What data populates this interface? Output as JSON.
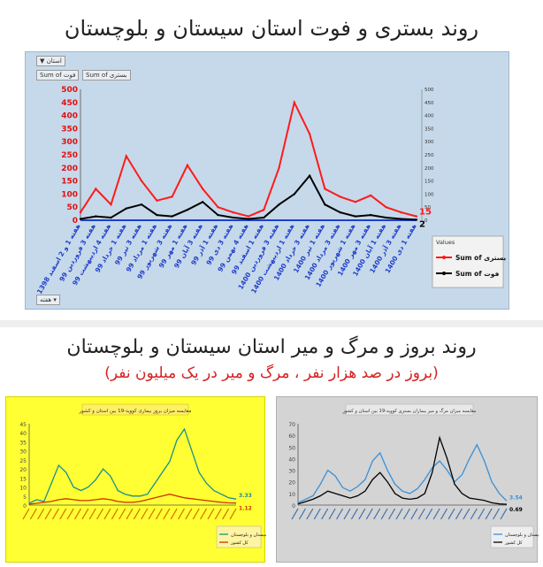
{
  "title1": "روند بستری و فوت استان سیستان و بلوچستان",
  "title2": "روند بروز و مرگ و میر استان سیستان و بلوچستان",
  "subtitle2": "(بروز در صد هزار نفر ، مرگ و میر در یک میلیون نفر)",
  "toolbar": {
    "filter_label": "استان",
    "week_label": "هفته"
  },
  "colors": {
    "hosp": "#ff1a1a",
    "death": "#000000",
    "blue_bg": "#c6d9ea",
    "incidence": "#1a8f8f",
    "inc_country": "#cc3300",
    "mort_province": "#3a8fd6",
    "mort_country": "#000000"
  },
  "chart_data": [
    {
      "type": "line",
      "x": [
        "هفته 1 و 2 اسفند 1398",
        "هفته 3 فروردین 99",
        "هفته 4 اردیبهشت 99",
        "هفته 1 خرداد 99",
        "هفته 3 تیر 99",
        "هفته 1 مرداد 99",
        "هفته 3 شهریور 99",
        "هفته 1 مهر 99",
        "هفته 3 آبان 99",
        "هفته 1 آذر 99",
        "هفته 3 دی 99",
        "هفته 4 بهمن 99",
        "هفته 1 اسفند 99",
        "هفته 3 فروردین 1400",
        "هفته 1 اردیبهشت 1400",
        "هفته 3 خرداد 1400",
        "هفته 1 تیر 1400",
        "هفته 3 مرداد 1400",
        "هفته 1 شهریور 1400",
        "هفته 3 مهر 1400",
        "هفته 1 آبان 1400",
        "هفته 3 آذر 1400",
        "هفته 1 دی 1400"
      ],
      "legend_title": "Values",
      "legend_position": "right",
      "series": [
        {
          "name": "Sum of بستری",
          "values": [
            30,
            120,
            60,
            245,
            150,
            75,
            90,
            210,
            120,
            50,
            30,
            15,
            40,
            200,
            450,
            330,
            120,
            90,
            70,
            95,
            50,
            30,
            15
          ]
        },
        {
          "name": "Sum of فوت",
          "values": [
            5,
            15,
            10,
            45,
            60,
            20,
            15,
            40,
            70,
            20,
            10,
            5,
            10,
            60,
            100,
            170,
            60,
            30,
            15,
            20,
            10,
            5,
            2
          ]
        }
      ],
      "yticks_left": [
        0,
        50,
        100,
        150,
        200,
        250,
        300,
        350,
        400,
        450,
        500
      ],
      "yticks_right": [
        0,
        50,
        100,
        150,
        200,
        250,
        300,
        350,
        400,
        450,
        500
      ],
      "ylim": [
        0,
        500
      ],
      "end_labels": [
        "15",
        "2"
      ],
      "header_chips": [
        "Sum of فوت",
        "Sum of بستری"
      ],
      "grid": false
    },
    {
      "type": "line",
      "title": "مقایسه میزان بروز بیماری کووید-19 بین استان و کشور",
      "series": [
        {
          "name": "سیستان و بلوچستان",
          "values": [
            1,
            3,
            2,
            12,
            22,
            18,
            10,
            8,
            10,
            14,
            20,
            16,
            8,
            6,
            5,
            5,
            6,
            12,
            18,
            24,
            36,
            42,
            30,
            18,
            12,
            8,
            6,
            4,
            3.33
          ]
        },
        {
          "name": "کل کشور",
          "values": [
            0.5,
            1,
            1.5,
            2,
            3,
            3.5,
            3,
            2.5,
            2.5,
            3,
            3.5,
            3,
            2,
            1.5,
            1.5,
            2,
            3,
            4,
            5,
            6,
            5,
            4,
            3.5,
            3,
            2.5,
            2,
            1.5,
            1.2,
            1.12
          ]
        }
      ],
      "yticks": [
        0,
        5,
        10,
        15,
        20,
        25,
        30,
        35,
        40,
        45
      ],
      "ylim": [
        0,
        45
      ],
      "end_labels": [
        "3.33",
        "1.12"
      ]
    },
    {
      "type": "line",
      "title": "مقایسه میزان مرگ و میر بیماران بستری کووید-19 بین استان و کشور",
      "series": [
        {
          "name": "سیستان و بلوچستان",
          "values": [
            2,
            5,
            8,
            18,
            30,
            25,
            15,
            12,
            16,
            22,
            38,
            45,
            30,
            18,
            12,
            10,
            14,
            22,
            32,
            38,
            30,
            20,
            26,
            40,
            52,
            38,
            20,
            10,
            3.54
          ]
        },
        {
          "name": "کل کشور",
          "values": [
            1,
            3,
            5,
            8,
            12,
            10,
            8,
            6,
            8,
            12,
            22,
            28,
            20,
            10,
            6,
            5,
            6,
            10,
            28,
            58,
            40,
            18,
            10,
            6,
            5,
            4,
            2,
            1,
            0.69
          ]
        }
      ],
      "yticks": [
        0,
        10,
        20,
        30,
        40,
        50,
        60,
        70
      ],
      "ylim": [
        0,
        70
      ],
      "end_labels": [
        "3.54",
        "0.69"
      ]
    }
  ]
}
